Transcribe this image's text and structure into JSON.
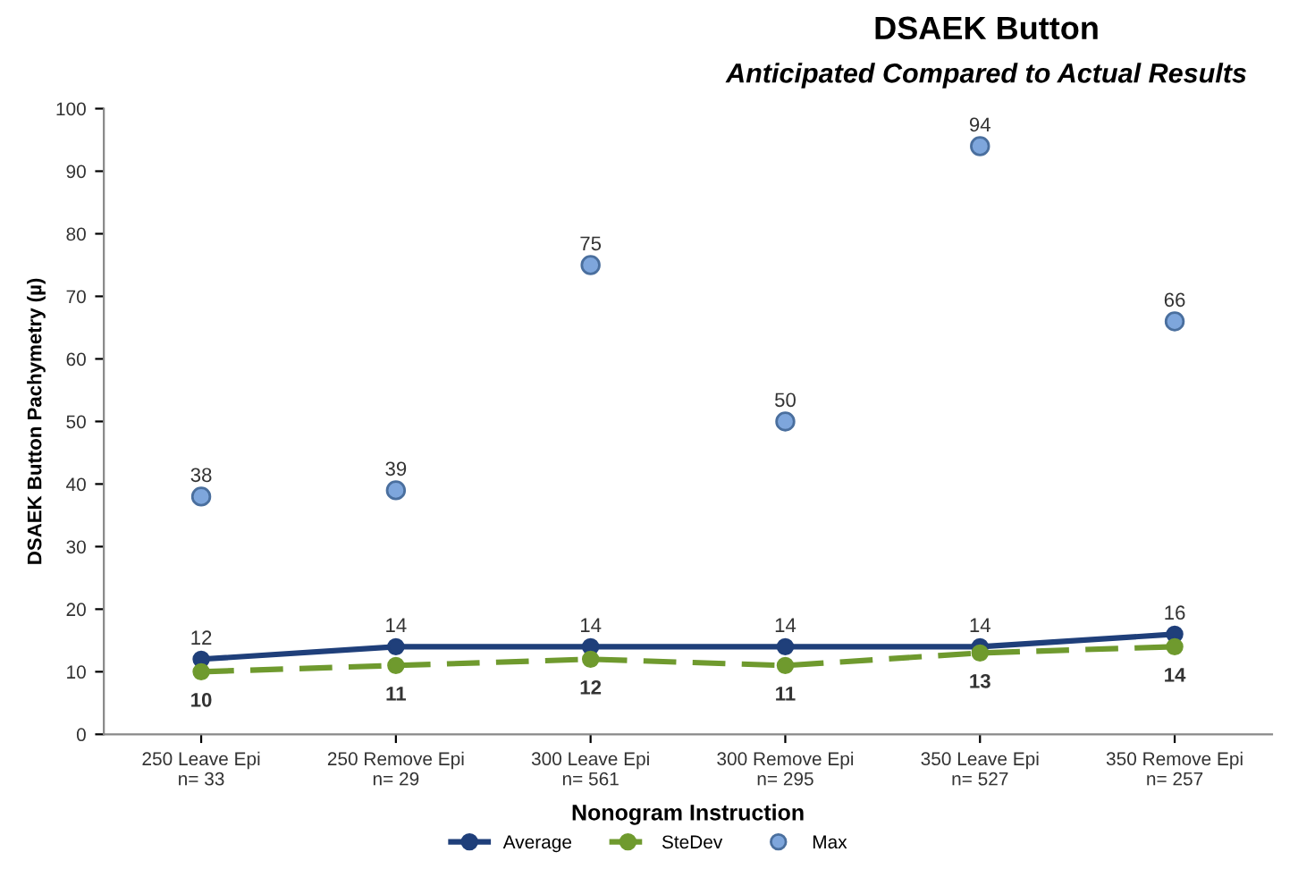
{
  "chart_data": {
    "type": "line",
    "title": "DSAEK Button",
    "subtitle": "Anticipated Compared to Actual Results",
    "xlabel": "Nonogram Instruction",
    "ylabel": "DSAEK Button Pachymetry (µ)",
    "categories": [
      "250 Leave Epi\nn= 33",
      "250 Remove Epi\nn= 29",
      "300 Leave Epi\nn= 561",
      "300 Remove Epi\nn= 295",
      "350 Leave Epi\nn= 527",
      "350 Remove Epi\nn= 257"
    ],
    "series": [
      {
        "name": "Average",
        "color": "#1f3f7a",
        "line_style": "solid",
        "marker": "circle",
        "values": [
          12,
          14,
          14,
          14,
          14,
          16
        ]
      },
      {
        "name": "SteDev",
        "color": "#6f9a2e",
        "line_style": "dashed",
        "marker": "circle",
        "values": [
          10,
          11,
          12,
          11,
          13,
          14
        ]
      },
      {
        "name": "Max",
        "type": "scatter",
        "color": "#7ea6dc",
        "marker": "circle",
        "values": [
          38,
          39,
          75,
          50,
          94,
          66
        ]
      }
    ],
    "ylim": [
      0,
      100
    ],
    "yticks": [
      0,
      10,
      20,
      30,
      40,
      50,
      60,
      70,
      80,
      90,
      100
    ],
    "data_labels": true,
    "grid": false,
    "legend": "bottom"
  }
}
